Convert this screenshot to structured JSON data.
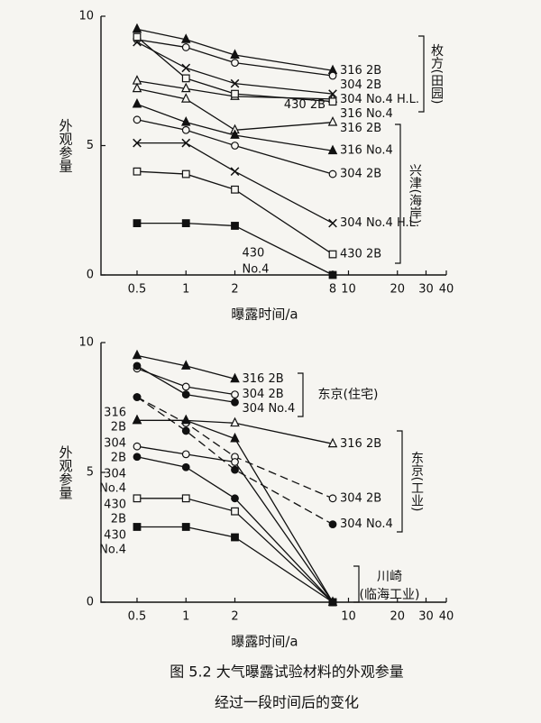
{
  "chart_data": [
    {
      "type": "line",
      "x_label": "曝露时间/a",
      "y_label": "外观参量",
      "log_x": true,
      "x": [
        0.5,
        1,
        2,
        8
      ],
      "xlim": [
        0.3,
        40
      ],
      "xticks": [
        0.5,
        1,
        2,
        8,
        10,
        20,
        30,
        40
      ],
      "ylim": [
        0,
        10
      ],
      "yticks": [
        0,
        5,
        10
      ],
      "series": [
        {
          "name": "316 2B",
          "color": "#111111",
          "marker": "triangle",
          "filled": true,
          "dashed": false,
          "label_side": "right",
          "values": [
            9.5,
            9.1,
            8.5,
            7.9
          ]
        },
        {
          "name": "304 2B",
          "color": "#111111",
          "marker": "circle",
          "filled": false,
          "dashed": false,
          "label_side": "right",
          "values": [
            9.1,
            8.8,
            8.2,
            7.7
          ]
        },
        {
          "name": "316 No.4",
          "color": "#111111",
          "marker": "triangle",
          "filled": false,
          "dashed": false,
          "label_side": "right",
          "values": [
            7.5,
            7.2,
            6.9,
            6.8
          ]
        },
        {
          "name": "304 No.4 H.L.",
          "color": "#111111",
          "marker": "cross",
          "filled": false,
          "dashed": false,
          "label_side": "right",
          "values": [
            9.0,
            8.0,
            7.4,
            7.0
          ]
        },
        {
          "name": "430 2B",
          "color": "#111111",
          "marker": "square",
          "filled": false,
          "dashed": false,
          "label_side": "left-end",
          "values": [
            9.2,
            7.6,
            7.0,
            6.7
          ]
        },
        {
          "name": "316 2B",
          "color": "#111111",
          "marker": "triangle",
          "filled": false,
          "dashed": false,
          "label_side": "right",
          "values": [
            7.2,
            6.8,
            5.6,
            5.9
          ]
        },
        {
          "name": "316 No.4",
          "color": "#111111",
          "marker": "triangle",
          "filled": true,
          "dashed": false,
          "label_side": "right",
          "values": [
            6.6,
            5.9,
            5.4,
            4.8
          ]
        },
        {
          "name": "304 2B",
          "color": "#111111",
          "marker": "circle",
          "filled": false,
          "dashed": false,
          "label_side": "right",
          "values": [
            6.0,
            5.6,
            5.0,
            3.9
          ]
        },
        {
          "name": "304 No.4 H.L.",
          "color": "#111111",
          "marker": "cross",
          "filled": false,
          "dashed": false,
          "label_side": "right",
          "values": [
            5.1,
            5.1,
            4.0,
            2.0
          ]
        },
        {
          "name": "430 2B",
          "color": "#111111",
          "marker": "square",
          "filled": false,
          "dashed": false,
          "label_side": "right",
          "values": [
            4.0,
            3.9,
            3.3,
            0.8
          ]
        },
        {
          "name": "430 No.4",
          "color": "#111111",
          "marker": "square",
          "filled": true,
          "dashed": false,
          "label_side": "inside",
          "values": [
            2.0,
            2.0,
            1.9,
            0
          ]
        }
      ],
      "groups": [
        {
          "lines": [
            "枚方(田园)"
          ]
        },
        {
          "lines": [
            "兴津(海岸)"
          ]
        }
      ]
    },
    {
      "type": "line",
      "x_label": "曝露时间/a",
      "y_label": "外观参量",
      "log_x": true,
      "x": [
        0.5,
        1,
        2,
        8
      ],
      "xlim": [
        0.3,
        40
      ],
      "xticks": [
        0.5,
        1,
        2,
        10,
        20,
        30,
        40
      ],
      "ylim": [
        0,
        10
      ],
      "yticks": [
        0,
        5,
        10
      ],
      "series": [
        {
          "name": "316 2B",
          "color": "#111111",
          "marker": "triangle",
          "filled": true,
          "dashed": false,
          "label_side": "right",
          "values": [
            9.5,
            9.1,
            8.6,
            null
          ]
        },
        {
          "name": "304 2B",
          "color": "#111111",
          "marker": "circle",
          "filled": false,
          "dashed": false,
          "label_side": "right",
          "values": [
            9.0,
            8.3,
            8.0,
            null
          ]
        },
        {
          "name": "304 No.4",
          "color": "#111111",
          "marker": "circle",
          "filled": true,
          "dashed": false,
          "label_side": "right",
          "values": [
            9.1,
            8.0,
            7.7,
            null
          ]
        },
        {
          "name": "316 2B",
          "color": "#111111",
          "marker": "triangle",
          "filled": false,
          "dashed": false,
          "label_side": "right",
          "values": [
            7.0,
            7.0,
            6.9,
            6.1
          ]
        },
        {
          "name": "304 2B",
          "color": "#111111",
          "marker": "circle",
          "filled": false,
          "dashed": true,
          "label_side": "right",
          "values": [
            7.9,
            6.9,
            5.6,
            4.0
          ]
        },
        {
          "name": "304 No.4",
          "color": "#111111",
          "marker": "circle",
          "filled": true,
          "dashed": true,
          "label_side": "right",
          "values": [
            7.9,
            6.6,
            5.1,
            3.0
          ]
        },
        {
          "name": "316 2B",
          "color": "#111111",
          "marker": "triangle",
          "filled": true,
          "dashed": false,
          "label_side": "left",
          "values": [
            7.0,
            7.0,
            6.3,
            0
          ]
        },
        {
          "name": "304 2B",
          "color": "#111111",
          "marker": "circle",
          "filled": false,
          "dashed": false,
          "label_side": "left",
          "values": [
            6.0,
            5.7,
            5.4,
            0
          ]
        },
        {
          "name": "304 No.4",
          "color": "#111111",
          "marker": "circle",
          "filled": true,
          "dashed": false,
          "label_side": "left",
          "values": [
            5.6,
            5.2,
            4.0,
            0
          ]
        },
        {
          "name": "430 2B",
          "color": "#111111",
          "marker": "square",
          "filled": false,
          "dashed": false,
          "label_side": "left",
          "values": [
            4.0,
            4.0,
            3.5,
            0
          ]
        },
        {
          "name": "430 No.4",
          "color": "#111111",
          "marker": "square",
          "filled": true,
          "dashed": false,
          "label_side": "left",
          "values": [
            2.9,
            2.9,
            2.5,
            0
          ]
        }
      ],
      "groups": [
        {
          "lines": [
            "东京(住宅)"
          ]
        },
        {
          "lines": [
            "东京(工业)"
          ]
        },
        {
          "lines": [
            "川崎",
            "(临海工业)"
          ]
        }
      ]
    }
  ],
  "caption": [
    "图 5.2  大气曝露试验材料的外观参量",
    "经过一段时间后的变化"
  ]
}
